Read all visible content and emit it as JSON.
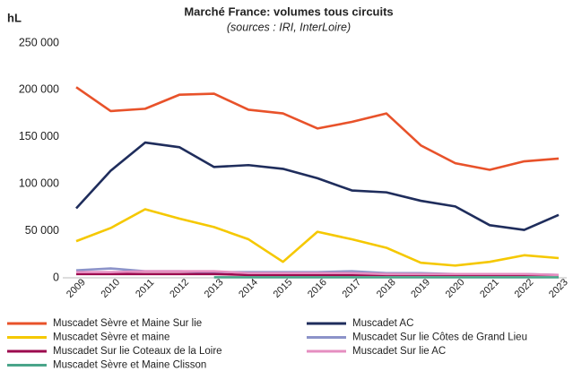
{
  "chart_data": {
    "type": "line",
    "title": "Marché France: volumes tous circuits",
    "subtitle": "(sources : IRI, InterLoire)",
    "y_label": "hL",
    "categories": [
      "2009",
      "2010",
      "2011",
      "2012",
      "2013",
      "2014",
      "2015",
      "2016",
      "2017",
      "2018",
      "2019",
      "2020",
      "2021",
      "2022",
      "2023"
    ],
    "series": [
      {
        "name": "Muscadet Sèvre et Maine Sur lie",
        "color": "#e8522a",
        "values": [
          203000,
          177500,
          180000,
          195000,
          196000,
          179000,
          175000,
          159000,
          166000,
          175000,
          141000,
          122000,
          115000,
          124000,
          127000
        ]
      },
      {
        "name": "Muscadet AC",
        "color": "#1f2d5c",
        "values": [
          74000,
          114000,
          144000,
          139000,
          118000,
          120000,
          116000,
          106000,
          93000,
          91000,
          82000,
          76000,
          56000,
          51000,
          67000
        ]
      },
      {
        "name": "Muscadet Sèvre et maine",
        "color": "#f5c800",
        "values": [
          39000,
          53000,
          73000,
          63000,
          54000,
          41000,
          17000,
          49000,
          41000,
          32000,
          16000,
          13000,
          17000,
          24000,
          21000
        ]
      },
      {
        "name": "Muscadet Sur lie Côtes de Grand Lieu",
        "color": "#8c93c9",
        "values": [
          8000,
          10000,
          7000,
          7000,
          6000,
          6000,
          6000,
          6000,
          7000,
          5000,
          5000,
          4000,
          4000,
          4000,
          3000
        ]
      },
      {
        "name": "Muscadet Sur lie Coteaux de la Loire",
        "color": "#9c0a4e",
        "values": [
          4000,
          4000,
          4000,
          4000,
          4000,
          3000,
          3000,
          3000,
          3000,
          3000,
          3000,
          3000,
          3000,
          3000,
          3000
        ]
      },
      {
        "name": "Muscadet Sur lie AC",
        "color": "#e58ec0",
        "values": [
          6000,
          6000,
          7000,
          7000,
          7000,
          5000,
          5000,
          5000,
          5000,
          4000,
          4000,
          4000,
          4000,
          4000,
          3000
        ]
      },
      {
        "name": "Muscadet Sèvre et Maine Clisson",
        "color": "#4aa58a",
        "values": [
          null,
          null,
          null,
          null,
          500,
          500,
          500,
          500,
          500,
          500,
          500,
          500,
          500,
          500,
          500
        ]
      }
    ],
    "ylim": [
      0,
      250000
    ],
    "yticks": [
      0,
      {
        "value": 50000,
        "label": "50 000"
      },
      {
        "value": 100000,
        "label": "100 000"
      },
      {
        "value": 150000,
        "label": "150 000"
      },
      {
        "value": 200000,
        "label": "200 000"
      },
      {
        "value": 250000,
        "label": "250 000"
      }
    ]
  }
}
